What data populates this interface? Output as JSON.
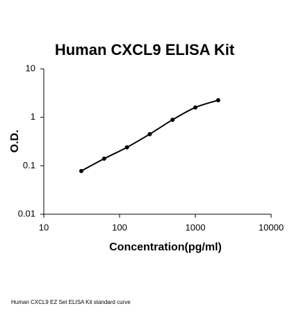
{
  "chart_data": {
    "type": "scatter",
    "title": "Human CXCL9 ELISA Kit",
    "x_label": "Concentration(pg/ml)",
    "y_label": "O.D.",
    "caption": "Human CXCL9 EZ Set ELISA Kit standard curve",
    "x": [
      31.25,
      62.5,
      125,
      250,
      500,
      1000,
      2000
    ],
    "series": [
      {
        "color": "#000000",
        "values": [
          0.078,
          0.14,
          0.24,
          0.45,
          0.89,
          1.6,
          2.25
        ]
      }
    ],
    "xscale": "log",
    "yscale": "log",
    "xlim": [
      10,
      10000
    ],
    "xticks": [
      10,
      100,
      1000,
      10000
    ],
    "ylim": [
      0.01,
      10
    ],
    "yticks": [
      0.01,
      0.1,
      1,
      10
    ],
    "smooth_line": true,
    "grid": false
  }
}
